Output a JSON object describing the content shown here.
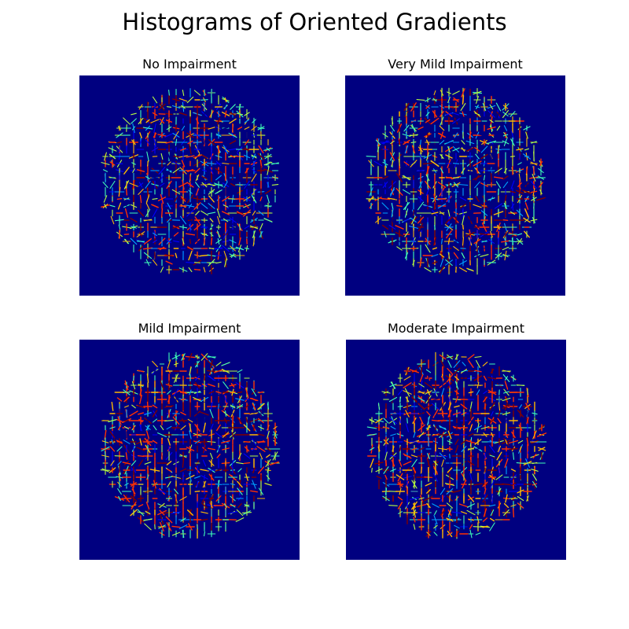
{
  "figure": {
    "title": "Histograms of Oriented Gradients"
  },
  "panels": [
    {
      "title": "No Impairment"
    },
    {
      "title": "Very Mild Impairment"
    },
    {
      "title": "Mild Impairment"
    },
    {
      "title": "Moderate Impairment"
    }
  ],
  "colors": {
    "background": "#000080",
    "colormap": [
      "#00007f",
      "#0000ff",
      "#00a4ff",
      "#40ffb7",
      "#b7ff40",
      "#ffb900",
      "#ff3000",
      "#7f0000"
    ]
  }
}
